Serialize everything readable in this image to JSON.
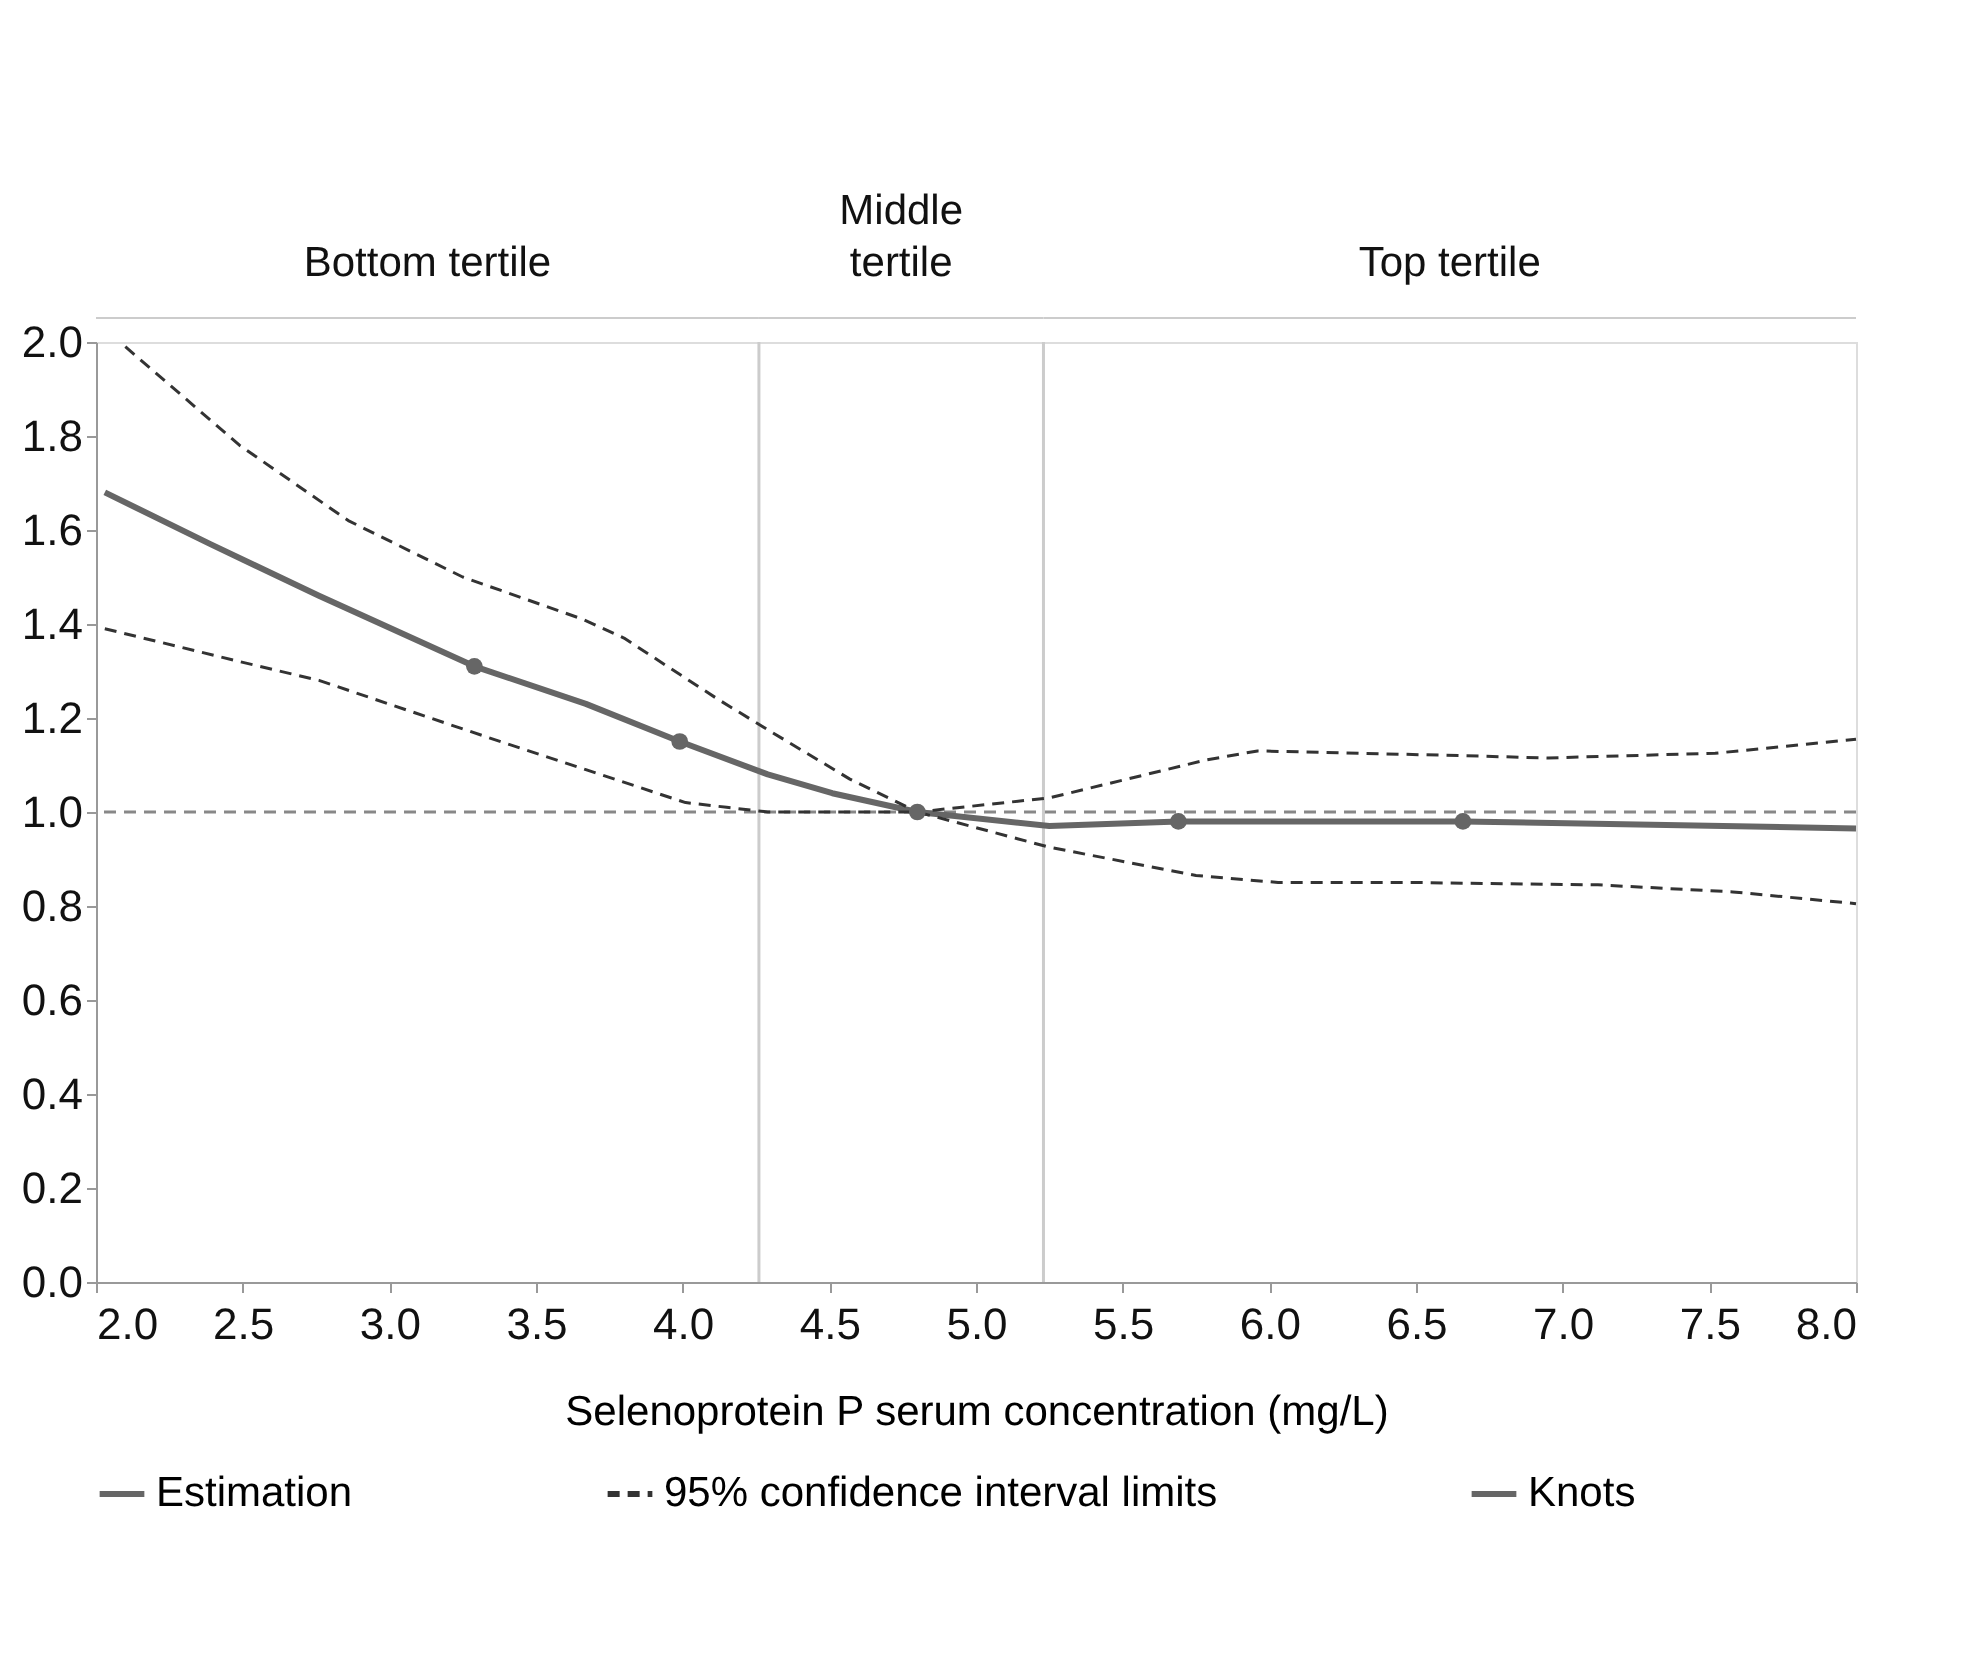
{
  "chart_data": {
    "type": "line",
    "xlabel": "Selenoprotein P serum concentration (mg/L)",
    "xlim": [
      2.0,
      8.0
    ],
    "xticks": [
      {
        "value": 2.0,
        "label": "2.0"
      },
      {
        "value": 2.5,
        "label": "2.5"
      },
      {
        "value": 3.0,
        "label": "3.0"
      },
      {
        "value": 3.5,
        "label": "3.5"
      },
      {
        "value": 4.0,
        "label": "4.0"
      },
      {
        "value": 4.5,
        "label": "4.5"
      },
      {
        "value": 5.0,
        "label": "5.0"
      },
      {
        "value": 5.5,
        "label": "5.5"
      },
      {
        "value": 6.0,
        "label": "6.0"
      },
      {
        "value": 6.5,
        "label": "6.5"
      },
      {
        "value": 7.0,
        "label": "7.0"
      },
      {
        "value": 7.5,
        "label": "7.5"
      },
      {
        "value": 8.0,
        "label": "8.0"
      }
    ],
    "ylim": [
      0.0,
      2.0
    ],
    "yticks": [
      {
        "value": 0.0,
        "label": "0.0"
      },
      {
        "value": 0.2,
        "label": "0.2"
      },
      {
        "value": 0.4,
        "label": "0.4"
      },
      {
        "value": 0.6,
        "label": "0.6"
      },
      {
        "value": 0.8,
        "label": "0.8"
      },
      {
        "value": 1.0,
        "label": "1.0"
      },
      {
        "value": 1.2,
        "label": "1.2"
      },
      {
        "value": 1.4,
        "label": "1.4"
      },
      {
        "value": 1.6,
        "label": "1.6"
      },
      {
        "value": 1.8,
        "label": "1.8"
      },
      {
        "value": 2.0,
        "label": "2.0"
      }
    ],
    "grid": false,
    "legend": "bottom",
    "series": [
      {
        "name": "Estimation",
        "line_style": "solid",
        "color": "#666666",
        "x": [
          2.03,
          2.39,
          2.76,
          3.29,
          3.67,
          3.99,
          4.29,
          4.51,
          4.8,
          5.25,
          5.69,
          6.66,
          8.0
        ],
        "values": [
          1.68,
          1.57,
          1.46,
          1.31,
          1.23,
          1.15,
          1.08,
          1.04,
          1.0,
          0.97,
          0.98,
          0.98,
          0.965
        ]
      },
      {
        "name": "95% confidence interval limits",
        "line_style": "dashed",
        "color": "#333333",
        "x": [
          2.1,
          2.49,
          2.86,
          3.25,
          3.66,
          3.8,
          4.12,
          4.29,
          4.57,
          4.8,
          5.25,
          5.78,
          5.96,
          6.65,
          6.95,
          7.52,
          8.0
        ],
        "values": [
          1.99,
          1.78,
          1.62,
          1.5,
          1.41,
          1.37,
          1.24,
          1.175,
          1.07,
          1.0,
          1.03,
          1.11,
          1.13,
          1.12,
          1.115,
          1.125,
          1.155
        ]
      },
      {
        "line_style": "dashed",
        "color": "#333333",
        "x": [
          2.03,
          2.49,
          2.76,
          3.33,
          3.67,
          4.01,
          4.15,
          4.29,
          4.8,
          5.25,
          5.75,
          6.03,
          6.49,
          7.12,
          7.58,
          8.0
        ],
        "values": [
          1.39,
          1.32,
          1.28,
          1.16,
          1.09,
          1.02,
          1.01,
          1.0,
          1.0,
          0.925,
          0.865,
          0.85,
          0.85,
          0.845,
          0.83,
          0.805
        ]
      },
      {
        "name": "Knots",
        "type": "scatter",
        "marker": "circle",
        "color": "#666666",
        "x": [
          3.29,
          3.99,
          4.8,
          5.69,
          6.66
        ],
        "values": [
          1.31,
          1.15,
          1.0,
          0.98,
          0.98
        ]
      }
    ],
    "ref_lines": [
      {
        "axis": "y",
        "value": 1.0,
        "color": "#888888",
        "line_style": "dashed"
      },
      {
        "axis": "x",
        "value": 4.26,
        "color": "#cccccc",
        "line_style": "solid"
      },
      {
        "axis": "x",
        "value": 5.23,
        "color": "#cccccc",
        "line_style": "solid"
      }
    ],
    "annotations": [
      "Bottom tertile",
      "Middle\ntertile",
      "Top tertile"
    ]
  }
}
